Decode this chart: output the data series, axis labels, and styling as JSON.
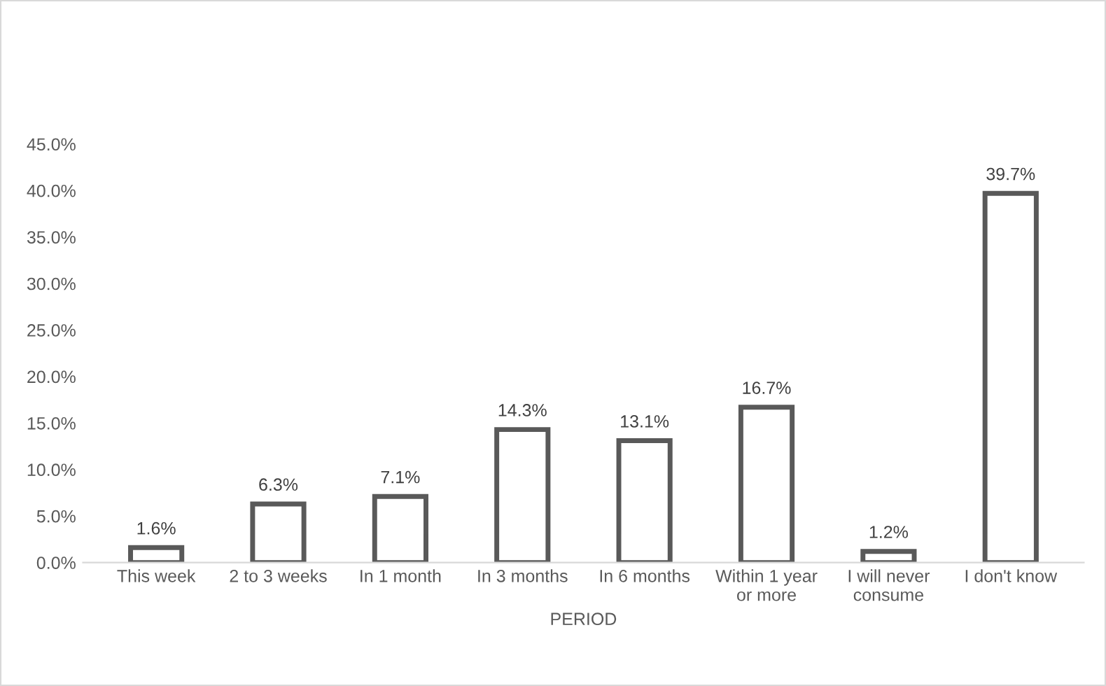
{
  "chart_data": {
    "type": "bar",
    "xlabel": "PERIOD",
    "categories": [
      "This week",
      "2 to 3 weeks",
      "In 1 month",
      "In 3 months",
      "In 6 months",
      "Within 1 year\nor more",
      "I will never\nconsume",
      "I don't know"
    ],
    "values": [
      1.6,
      6.3,
      7.1,
      14.3,
      13.1,
      16.7,
      1.2,
      39.7
    ],
    "value_labels": [
      "1.6%",
      "6.3%",
      "7.1%",
      "14.3%",
      "13.1%",
      "16.7%",
      "1.2%",
      "39.7%"
    ],
    "color": "#595959",
    "ylim": [
      0,
      45
    ],
    "yticks": [
      {
        "value": 0,
        "label": "0.0%"
      },
      {
        "value": 5,
        "label": "5.0%"
      },
      {
        "value": 10,
        "label": "10.0%"
      },
      {
        "value": 15,
        "label": "15.0%"
      },
      {
        "value": 20,
        "label": "20.0%"
      },
      {
        "value": 25,
        "label": "25.0%"
      },
      {
        "value": 30,
        "label": "30.0%"
      },
      {
        "value": 35,
        "label": "35.0%"
      },
      {
        "value": 40,
        "label": "40.0%"
      },
      {
        "value": 45,
        "label": "45.0%"
      }
    ],
    "grid": false,
    "legend": false
  }
}
